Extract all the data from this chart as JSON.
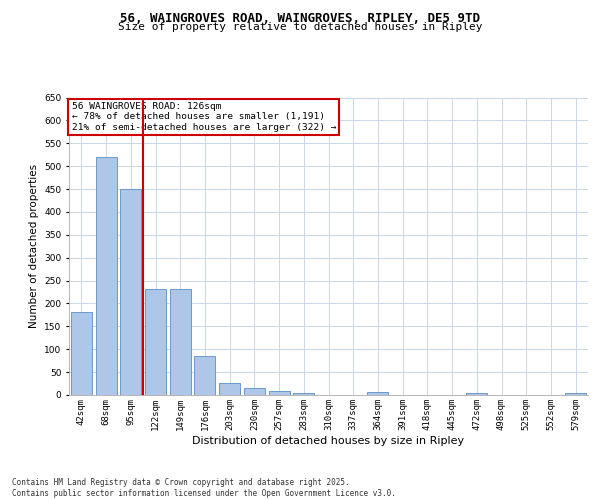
{
  "title_line1": "56, WAINGROVES ROAD, WAINGROVES, RIPLEY, DE5 9TD",
  "title_line2": "Size of property relative to detached houses in Ripley",
  "xlabel": "Distribution of detached houses by size in Ripley",
  "ylabel": "Number of detached properties",
  "categories": [
    "42sqm",
    "68sqm",
    "95sqm",
    "122sqm",
    "149sqm",
    "176sqm",
    "203sqm",
    "230sqm",
    "257sqm",
    "283sqm",
    "310sqm",
    "337sqm",
    "364sqm",
    "391sqm",
    "418sqm",
    "445sqm",
    "472sqm",
    "498sqm",
    "525sqm",
    "552sqm",
    "579sqm"
  ],
  "values": [
    182,
    520,
    450,
    232,
    232,
    86,
    27,
    15,
    8,
    5,
    0,
    0,
    6,
    0,
    0,
    0,
    4,
    0,
    0,
    0,
    4
  ],
  "bar_color": "#aec6e8",
  "bar_edge_color": "#5b8ec4",
  "vline_color": "#cc0000",
  "vline_x_index": 3,
  "annotation_text": "56 WAINGROVES ROAD: 126sqm\n← 78% of detached houses are smaller (1,191)\n21% of semi-detached houses are larger (322) →",
  "annotation_box_color": "#ffffff",
  "annotation_box_edge": "#cc0000",
  "footer_text": "Contains HM Land Registry data © Crown copyright and database right 2025.\nContains public sector information licensed under the Open Government Licence v3.0.",
  "ylim": [
    0,
    650
  ],
  "yticks": [
    0,
    50,
    100,
    150,
    200,
    250,
    300,
    350,
    400,
    450,
    500,
    550,
    600,
    650
  ],
  "background_color": "#ffffff",
  "grid_color": "#c8d8e8",
  "title_fontsize": 9,
  "subtitle_fontsize": 8,
  "xlabel_fontsize": 8,
  "ylabel_fontsize": 7.5,
  "tick_fontsize": 6.5,
  "footer_fontsize": 5.5
}
